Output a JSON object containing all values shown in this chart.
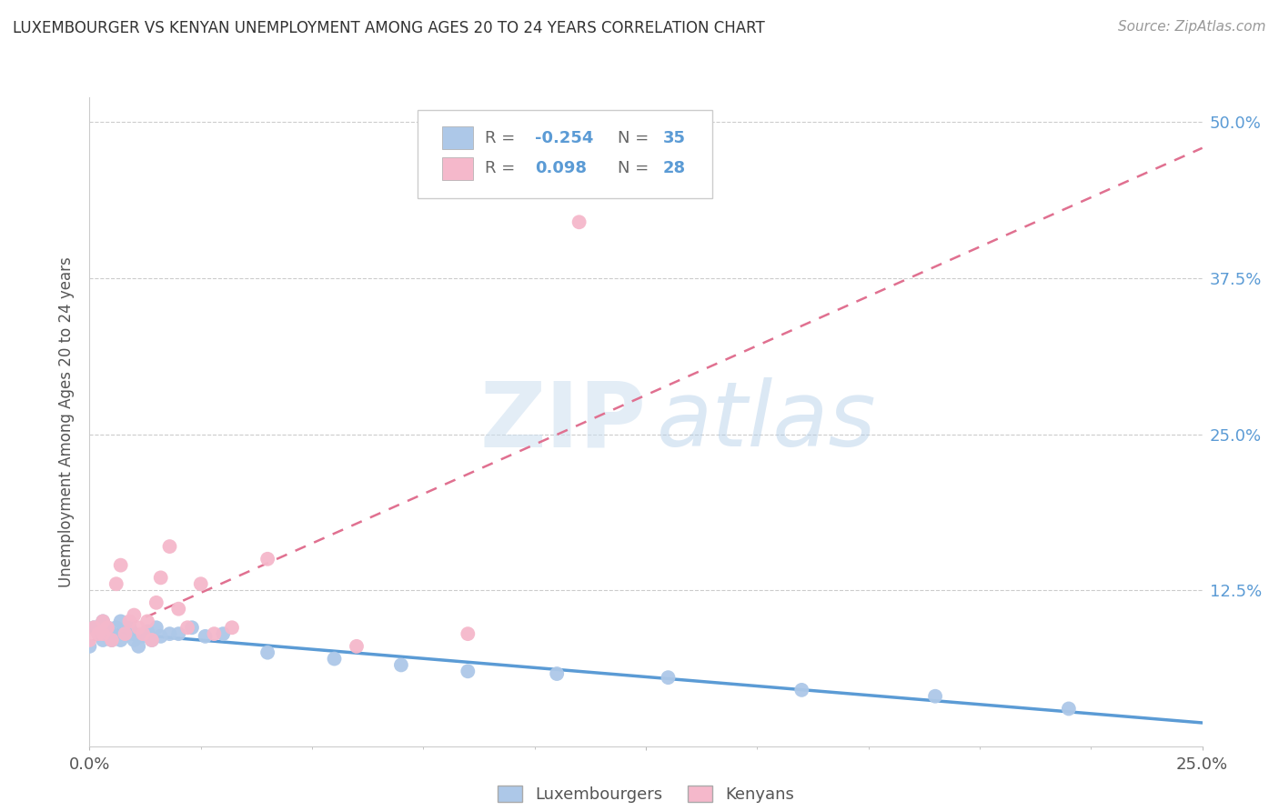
{
  "title": "LUXEMBOURGER VS KENYAN UNEMPLOYMENT AMONG AGES 20 TO 24 YEARS CORRELATION CHART",
  "source": "Source: ZipAtlas.com",
  "ylabel": "Unemployment Among Ages 20 to 24 years",
  "xlim": [
    0.0,
    0.25
  ],
  "ylim": [
    0.0,
    0.52
  ],
  "yticks": [
    0.0,
    0.125,
    0.25,
    0.375,
    0.5
  ],
  "ytick_labels": [
    "",
    "12.5%",
    "25.0%",
    "37.5%",
    "50.0%"
  ],
  "legend_lux_R": "-0.254",
  "legend_lux_N": "35",
  "legend_ken_R": "0.098",
  "legend_ken_N": "28",
  "lux_color": "#adc8e8",
  "ken_color": "#f5b8cb",
  "lux_line_color": "#5b9bd5",
  "ken_line_color": "#e07090",
  "lux_x": [
    0.0,
    0.001,
    0.002,
    0.003,
    0.003,
    0.004,
    0.005,
    0.005,
    0.006,
    0.007,
    0.007,
    0.008,
    0.009,
    0.01,
    0.01,
    0.011,
    0.012,
    0.013,
    0.014,
    0.015,
    0.016,
    0.018,
    0.02,
    0.023,
    0.026,
    0.03,
    0.04,
    0.055,
    0.07,
    0.085,
    0.105,
    0.13,
    0.16,
    0.19,
    0.22
  ],
  "lux_y": [
    0.08,
    0.095,
    0.09,
    0.1,
    0.085,
    0.095,
    0.09,
    0.085,
    0.095,
    0.1,
    0.085,
    0.09,
    0.095,
    0.085,
    0.09,
    0.08,
    0.088,
    0.092,
    0.085,
    0.095,
    0.088,
    0.09,
    0.09,
    0.095,
    0.088,
    0.09,
    0.075,
    0.07,
    0.065,
    0.06,
    0.058,
    0.055,
    0.045,
    0.04,
    0.03
  ],
  "ken_x": [
    0.0,
    0.001,
    0.002,
    0.003,
    0.003,
    0.004,
    0.005,
    0.006,
    0.007,
    0.008,
    0.009,
    0.01,
    0.011,
    0.012,
    0.013,
    0.014,
    0.015,
    0.016,
    0.018,
    0.02,
    0.022,
    0.025,
    0.028,
    0.032,
    0.04,
    0.06,
    0.085,
    0.11
  ],
  "ken_y": [
    0.085,
    0.095,
    0.09,
    0.09,
    0.1,
    0.095,
    0.085,
    0.13,
    0.145,
    0.09,
    0.1,
    0.105,
    0.095,
    0.09,
    0.1,
    0.085,
    0.115,
    0.135,
    0.16,
    0.11,
    0.095,
    0.13,
    0.09,
    0.095,
    0.15,
    0.08,
    0.09,
    0.42
  ]
}
